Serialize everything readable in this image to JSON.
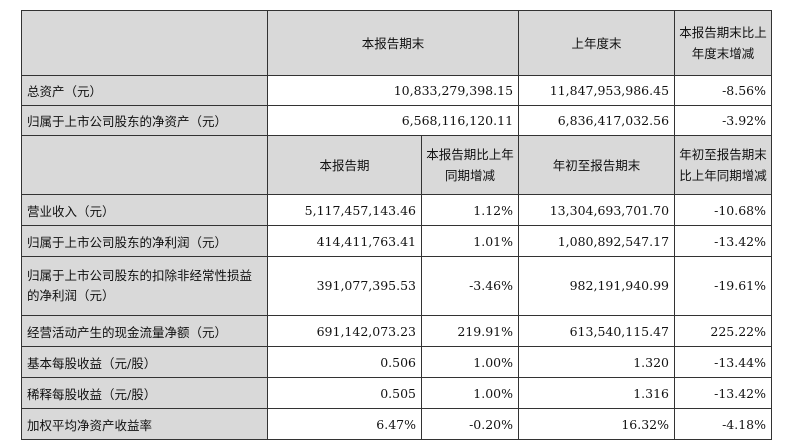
{
  "top_header": {
    "col1": "本报告期末",
    "col2": "上年度末",
    "col3": "本报告期末比上年度末增减"
  },
  "top_rows": [
    {
      "label": "总资产（元）",
      "current_end": "10,833,279,398.15",
      "prior_year_end": "11,847,953,986.45",
      "change": "-8.56%"
    },
    {
      "label": "归属于上市公司股东的净资产（元）",
      "current_end": "6,568,116,120.11",
      "prior_year_end": "6,836,417,032.56",
      "change": "-3.92%"
    }
  ],
  "sub_header": {
    "col1": "本报告期",
    "col2": "本报告期比上年同期增减",
    "col3": "年初至报告期末",
    "col4": "年初至报告期末比上年同期增减"
  },
  "rows": [
    {
      "label": "营业收入（元）",
      "period": "5,117,457,143.46",
      "period_change": "1.12%",
      "ytd": "13,304,693,701.70",
      "ytd_change": "-10.68%"
    },
    {
      "label": "归属于上市公司股东的净利润（元）",
      "period": "414,411,763.41",
      "period_change": "1.01%",
      "ytd": "1,080,892,547.17",
      "ytd_change": "-13.42%"
    },
    {
      "label": "归属于上市公司股东的扣除非经常性损益的净利润（元）",
      "period": "391,077,395.53",
      "period_change": "-3.46%",
      "ytd": "982,191,940.99",
      "ytd_change": "-19.61%"
    },
    {
      "label": "经营活动产生的现金流量净额（元）",
      "period": "691,142,073.23",
      "period_change": "219.91%",
      "ytd": "613,540,115.47",
      "ytd_change": "225.22%"
    },
    {
      "label": "基本每股收益（元/股）",
      "period": "0.506",
      "period_change": "1.00%",
      "ytd": "1.320",
      "ytd_change": "-13.44%"
    },
    {
      "label": "稀释每股收益（元/股）",
      "period": "0.505",
      "period_change": "1.00%",
      "ytd": "1.316",
      "ytd_change": "-13.42%"
    },
    {
      "label": "加权平均净资产收益率",
      "period": "6.47%",
      "period_change": "-0.20%",
      "ytd": "16.32%",
      "ytd_change": "-4.18%"
    }
  ]
}
